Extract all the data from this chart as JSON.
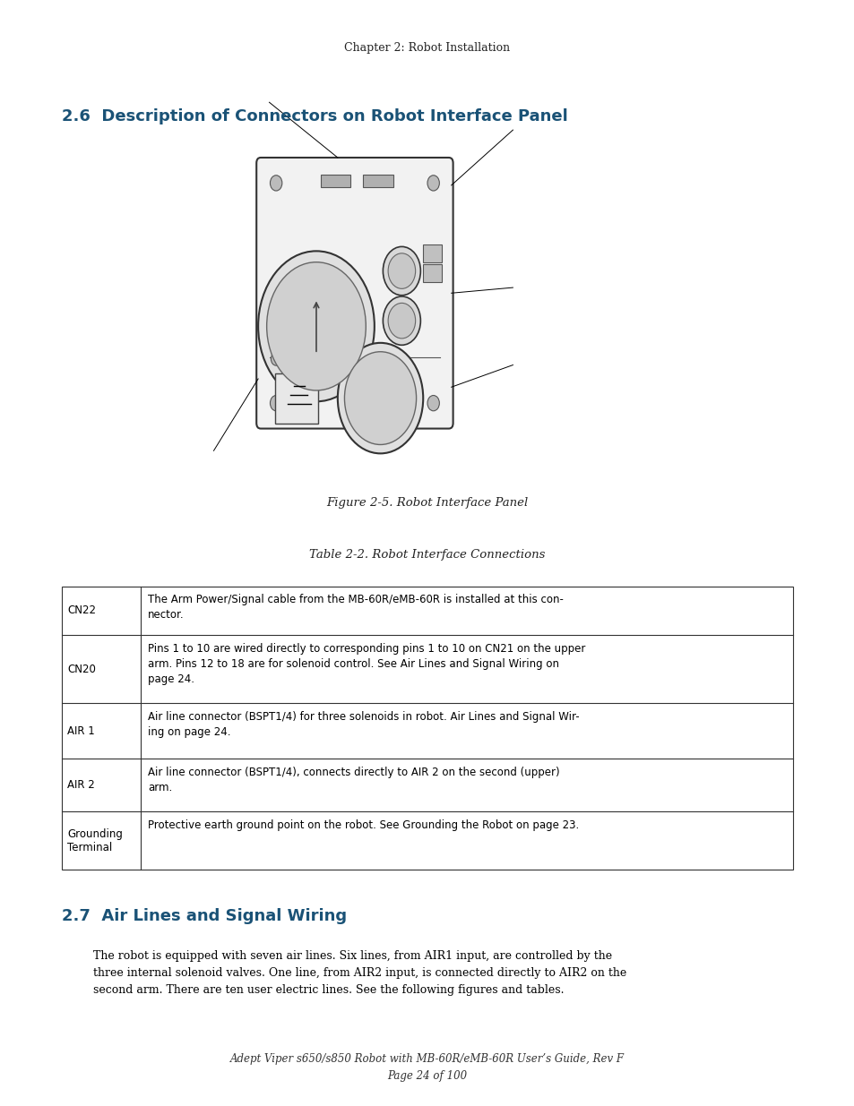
{
  "header_text": "Chapter 2: Robot Installation",
  "section_title": "2.6  Description of Connectors on Robot Interface Panel",
  "figure_caption": "Figure 2-5. Robot Interface Panel",
  "table_caption": "Table 2-2. Robot Interface Connections",
  "table_rows": [
    [
      "CN22",
      "The Arm Power/Signal cable from the MB-60R/eMB-60R is installed at this con-\nnector."
    ],
    [
      "CN20",
      "Pins 1 to 10 are wired directly to corresponding pins 1 to 10 on CN21 on the upper\narm. Pins 12 to 18 are for solenoid control. See Air Lines and Signal Wiring on\npage 24."
    ],
    [
      "AIR 1",
      "Air line connector (BSPT1/4) for three solenoids in robot. Air Lines and Signal Wir-\ning on page 24."
    ],
    [
      "AIR 2",
      "Air line connector (BSPT1/4), connects directly to AIR 2 on the second (upper)\narm."
    ],
    [
      "Grounding\nTerminal",
      "Protective earth ground point on the robot. See Grounding the Robot on page 23."
    ]
  ],
  "section2_title": "2.7  Air Lines and Signal Wiring",
  "section2_body": "The robot is equipped with seven air lines. Six lines, from AIR1 input, are controlled by the\nthree internal solenoid valves. One line, from AIR2 input, is connected directly to AIR2 on the\nsecond arm. There are ten user electric lines. See the following figures and tables.",
  "footer_line1": "Adept Viper s650/s850 Robot with MB-60R/eMB-60R User’s Guide, Rev F",
  "footer_line2": "Page 24 of 100",
  "heading_color": "#1a5276",
  "body_color": "#000000",
  "header_color": "#222222",
  "bg_color": "#ffffff"
}
